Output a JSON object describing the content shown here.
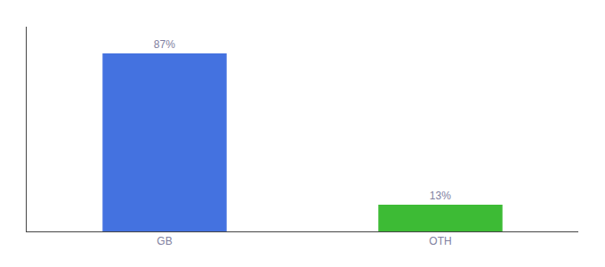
{
  "chart_data": {
    "type": "bar",
    "categories": [
      "GB",
      "OTH"
    ],
    "values": [
      87,
      13
    ],
    "value_labels": [
      "87%",
      "13%"
    ],
    "colors": [
      "#4472e0",
      "#3dbb35"
    ],
    "ylim": [
      0,
      100
    ],
    "grid": false,
    "data_labels": true,
    "tick_labels": "x"
  }
}
